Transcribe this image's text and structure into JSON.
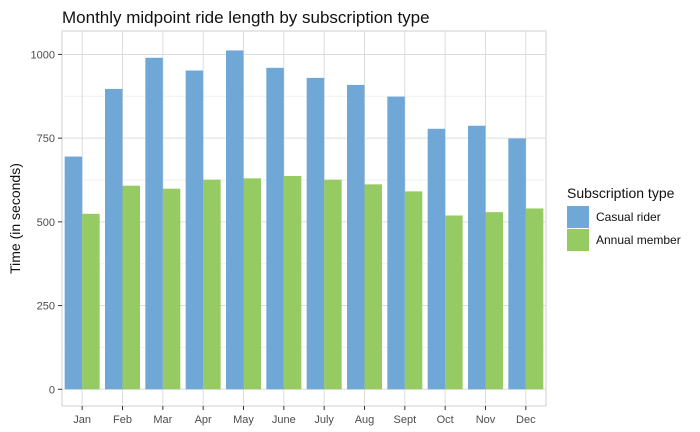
{
  "chart_data": {
    "type": "bar",
    "title": "Monthly midpoint ride length by subscription type",
    "xlabel": "",
    "ylabel": "Time (in seconds)",
    "categories": [
      "Jan",
      "Feb",
      "Mar",
      "Apr",
      "May",
      "June",
      "July",
      "Aug",
      "Sept",
      "Oct",
      "Nov",
      "Dec"
    ],
    "series": [
      {
        "name": "Casual rider",
        "color": "#6FA8D6",
        "values": [
          695,
          897,
          990,
          952,
          1012,
          960,
          930,
          909,
          874,
          778,
          787,
          749
        ]
      },
      {
        "name": "Annual member",
        "color": "#96CA63",
        "values": [
          524,
          608,
          599,
          626,
          630,
          637,
          626,
          612,
          591,
          519,
          529,
          540
        ]
      }
    ],
    "ylim": [
      -50,
      1070
    ],
    "yticks": [
      0,
      250,
      500,
      750,
      1000
    ],
    "grid": true,
    "legend": {
      "title": "Subscription type",
      "position": "right"
    }
  }
}
